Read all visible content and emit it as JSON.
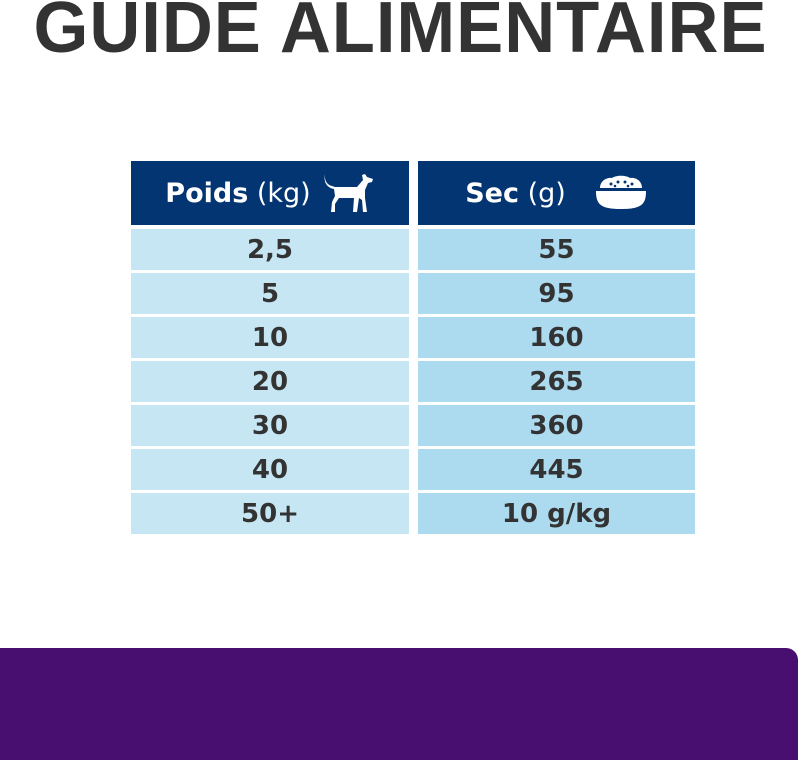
{
  "title": "GUIDE ALIMENTAIRE",
  "table": {
    "headers": [
      {
        "label": "Poids",
        "unit": "(kg)",
        "icon": "dog-icon"
      },
      {
        "label": "Sec",
        "unit": "(g)",
        "icon": "food-bowl-icon"
      }
    ],
    "rows": [
      [
        "2,5",
        "55"
      ],
      [
        "5",
        "95"
      ],
      [
        "10",
        "160"
      ],
      [
        "20",
        "265"
      ],
      [
        "30",
        "360"
      ],
      [
        "40",
        "445"
      ],
      [
        "50+",
        "10 g/kg"
      ]
    ]
  },
  "colors": {
    "header": "#023572",
    "cell_left": "#c6e6f4",
    "cell_right": "#acdaef",
    "band": "#480e70",
    "text": "#333333"
  }
}
